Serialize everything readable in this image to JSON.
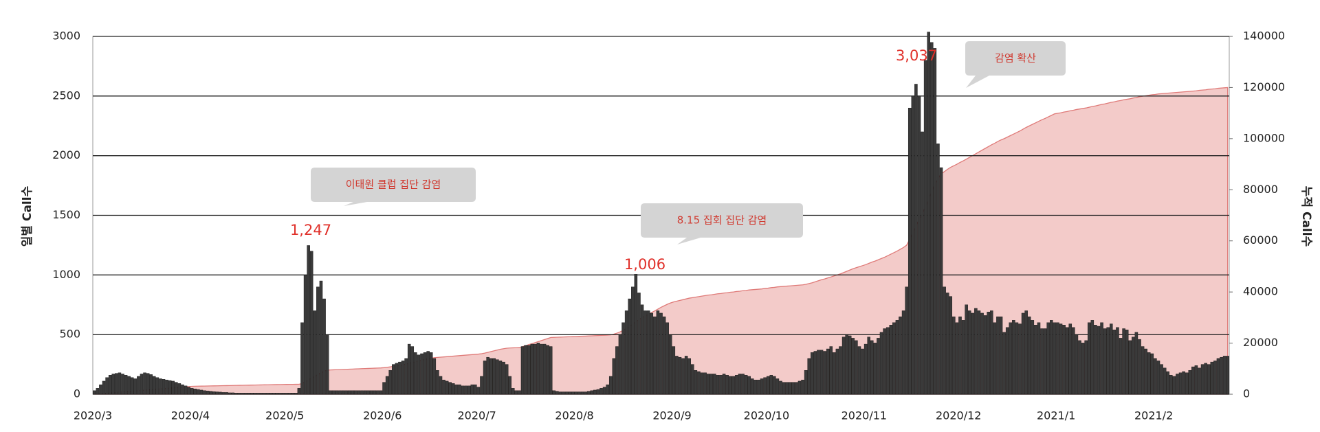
{
  "chart_data": {
    "type": "bar",
    "y_label": "일별 Call수",
    "y2_label": "누적 Call수",
    "categories": [
      "2020/3",
      null,
      null,
      null,
      null,
      null,
      null,
      null,
      null,
      null,
      null,
      null,
      null,
      null,
      null,
      null,
      null,
      null,
      null,
      null,
      null,
      null,
      null,
      null,
      null,
      null,
      null,
      null,
      null,
      null,
      null,
      "2020/4",
      null,
      null,
      null,
      null,
      null,
      null,
      null,
      null,
      null,
      null,
      null,
      null,
      null,
      null,
      null,
      null,
      null,
      null,
      null,
      null,
      null,
      null,
      null,
      null,
      null,
      null,
      null,
      null,
      null,
      "2020/5",
      null,
      null,
      null,
      null,
      null,
      null,
      null,
      null,
      null,
      null,
      null,
      null,
      null,
      null,
      null,
      null,
      null,
      null,
      null,
      null,
      null,
      null,
      null,
      null,
      null,
      null,
      null,
      null,
      null,
      null,
      "2020/6",
      null,
      null,
      null,
      null,
      null,
      null,
      null,
      null,
      null,
      null,
      null,
      null,
      null,
      null,
      null,
      null,
      null,
      null,
      null,
      null,
      null,
      null,
      null,
      null,
      null,
      null,
      null,
      null,
      null,
      "2020/7",
      null,
      null,
      null,
      null,
      null,
      null,
      null,
      null,
      null,
      null,
      null,
      null,
      null,
      null,
      null,
      null,
      null,
      null,
      null,
      null,
      null,
      null,
      null,
      null,
      null,
      null,
      null,
      null,
      null,
      null,
      "2020/8",
      null,
      null,
      null,
      null,
      null,
      null,
      null,
      null,
      null,
      null,
      null,
      null,
      null,
      null,
      null,
      null,
      null,
      null,
      null,
      null,
      null,
      null,
      null,
      null,
      null,
      null,
      null,
      null,
      null,
      null,
      "2020/9",
      null,
      null,
      null,
      null,
      null,
      null,
      null,
      null,
      null,
      null,
      null,
      null,
      null,
      null,
      null,
      null,
      null,
      null,
      null,
      null,
      null,
      null,
      null,
      null,
      null,
      null,
      null,
      null,
      null,
      "2020/10",
      null,
      null,
      null,
      null,
      null,
      null,
      null,
      null,
      null,
      null,
      null,
      null,
      null,
      null,
      null,
      null,
      null,
      null,
      null,
      null,
      null,
      null,
      null,
      null,
      null,
      null,
      null,
      null,
      null,
      null,
      "2020/11",
      null,
      null,
      null,
      null,
      null,
      null,
      null,
      null,
      null,
      null,
      null,
      null,
      null,
      null,
      null,
      null,
      null,
      null,
      null,
      null,
      null,
      null,
      null,
      null,
      null,
      null,
      null,
      null,
      null,
      "2020/12",
      null,
      null,
      null,
      null,
      null,
      null,
      null,
      null,
      null,
      null,
      null,
      null,
      null,
      null,
      null,
      null,
      null,
      null,
      null,
      null,
      null,
      null,
      null,
      null,
      null,
      null,
      null,
      null,
      null,
      null,
      "2021/1",
      null,
      null,
      null,
      null,
      null,
      null,
      null,
      null,
      null,
      null,
      null,
      null,
      null,
      null,
      null,
      null,
      null,
      null,
      null,
      null,
      null,
      null,
      null,
      null,
      null,
      null,
      null,
      null,
      null,
      null,
      "2021/2",
      null,
      null,
      null,
      null,
      null,
      null,
      null,
      null,
      null,
      null,
      null,
      null,
      null,
      null,
      null,
      null,
      null,
      null,
      null,
      null,
      null,
      null,
      null
    ],
    "series": [
      {
        "color": "#3a3a3a",
        "values": [
          30,
          50,
          80,
          110,
          140,
          160,
          170,
          175,
          180,
          170,
          160,
          150,
          140,
          130,
          150,
          170,
          180,
          175,
          165,
          150,
          140,
          130,
          125,
          120,
          115,
          110,
          100,
          90,
          80,
          70,
          60,
          50,
          45,
          40,
          35,
          30,
          28,
          25,
          22,
          20,
          18,
          15,
          15,
          12,
          12,
          10,
          10,
          10,
          10,
          10,
          10,
          10,
          10,
          10,
          10,
          10,
          10,
          10,
          10,
          10,
          10,
          10,
          10,
          10,
          10,
          50,
          600,
          1000,
          1247,
          1200,
          700,
          900,
          950,
          800,
          500,
          30,
          30,
          30,
          30,
          30,
          30,
          30,
          30,
          30,
          30,
          30,
          30,
          30,
          30,
          30,
          30,
          30,
          100,
          150,
          200,
          250,
          260,
          270,
          280,
          300,
          420,
          400,
          350,
          330,
          340,
          350,
          360,
          350,
          300,
          200,
          150,
          120,
          110,
          100,
          90,
          80,
          80,
          70,
          70,
          70,
          80,
          80,
          60,
          150,
          280,
          310,
          300,
          300,
          290,
          280,
          270,
          250,
          150,
          50,
          30,
          30,
          400,
          410,
          410,
          420,
          420,
          430,
          420,
          420,
          410,
          400,
          30,
          25,
          20,
          20,
          20,
          20,
          20,
          20,
          20,
          20,
          20,
          25,
          30,
          35,
          40,
          50,
          60,
          80,
          150,
          300,
          400,
          500,
          600,
          700,
          800,
          900,
          1006,
          850,
          750,
          700,
          700,
          680,
          650,
          700,
          680,
          650,
          600,
          500,
          400,
          320,
          310,
          300,
          320,
          300,
          250,
          200,
          190,
          180,
          180,
          170,
          170,
          170,
          160,
          160,
          170,
          160,
          150,
          150,
          160,
          170,
          170,
          160,
          150,
          130,
          120,
          120,
          130,
          140,
          150,
          160,
          150,
          130,
          110,
          100,
          100,
          100,
          100,
          100,
          110,
          120,
          200,
          300,
          350,
          360,
          370,
          370,
          360,
          380,
          400,
          350,
          380,
          400,
          480,
          500,
          490,
          470,
          450,
          400,
          380,
          420,
          480,
          450,
          430,
          470,
          520,
          550,
          560,
          580,
          600,
          620,
          650,
          700,
          900,
          2400,
          2500,
          2600,
          2500,
          2200,
          2800,
          3037,
          2950,
          2900,
          2100,
          1900,
          900,
          850,
          820,
          650,
          600,
          650,
          620,
          750,
          700,
          680,
          720,
          700,
          680,
          660,
          690,
          700,
          600,
          650,
          650,
          520,
          560,
          600,
          620,
          600,
          590,
          680,
          700,
          650,
          620,
          580,
          600,
          550,
          550,
          600,
          620,
          600,
          600,
          590,
          580,
          560,
          590,
          560,
          500,
          450,
          430,
          450,
          600,
          620,
          580,
          570,
          600,
          550,
          560,
          590,
          540,
          560,
          470,
          550,
          540,
          450,
          480,
          520,
          460,
          400,
          380,
          350,
          340,
          300,
          280,
          250,
          220,
          190,
          160,
          150,
          170,
          180,
          190,
          180,
          200,
          230,
          240,
          220,
          250,
          260,
          250,
          270,
          280,
          300,
          310,
          320,
          320
        ]
      },
      {
        "type": "area",
        "axis": "y2",
        "color": "#f3cbc9",
        "line_color": "#df7a78",
        "values": [
          0,
          100,
          200,
          300,
          400,
          500,
          600,
          700,
          800,
          900,
          1000,
          1100,
          1200,
          1300,
          1400,
          1500,
          1600,
          1700,
          1800,
          1900,
          2000,
          2100,
          2200,
          2300,
          2400,
          2500,
          2600,
          2700,
          2800,
          2900,
          3000,
          3100,
          3125,
          3150,
          3175,
          3200,
          3225,
          3250,
          3275,
          3300,
          3325,
          3350,
          3375,
          3400,
          3425,
          3450,
          3475,
          3500,
          3525,
          3550,
          3575,
          3600,
          3625,
          3650,
          3675,
          3700,
          3725,
          3750,
          3775,
          3800,
          3825,
          3850,
          3860,
          3870,
          3880,
          3900,
          4200,
          4800,
          5600,
          6400,
          7000,
          7700,
          8400,
          9000,
          9400,
          9500,
          9550,
          9600,
          9650,
          9700,
          9750,
          9800,
          9850,
          9900,
          9950,
          10000,
          10050,
          10100,
          10150,
          10200,
          10250,
          10300,
          10400,
          10550,
          10700,
          10900,
          11100,
          11300,
          11500,
          11800,
          12100,
          12400,
          12700,
          13000,
          13300,
          13600,
          13900,
          14100,
          14300,
          14400,
          14500,
          14600,
          14700,
          14800,
          14900,
          15000,
          15100,
          15200,
          15300,
          15400,
          15500,
          15600,
          15700,
          15850,
          16100,
          16400,
          16700,
          17000,
          17300,
          17600,
          17800,
          18000,
          18100,
          18150,
          18200,
          18250,
          18600,
          19000,
          19400,
          19800,
          20200,
          20600,
          21000,
          21400,
          21800,
          22200,
          22250,
          22300,
          22350,
          22400,
          22450,
          22500,
          22550,
          22600,
          22650,
          22700,
          22750,
          22800,
          22850,
          22900,
          22950,
          23000,
          23050,
          23100,
          23200,
          23500,
          23900,
          24400,
          25000,
          25700,
          26500,
          27400,
          28400,
          29200,
          29900,
          30600,
          31300,
          32000,
          32600,
          33300,
          34000,
          34600,
          35200,
          35700,
          36100,
          36400,
          36700,
          37000,
          37300,
          37600,
          37800,
          38000,
          38200,
          38400,
          38600,
          38800,
          38900,
          39100,
          39300,
          39400,
          39600,
          39700,
          39900,
          40000,
          40200,
          40300,
          40500,
          40600,
          40800,
          40900,
          41000,
          41100,
          41200,
          41400,
          41500,
          41700,
          41800,
          42000,
          42100,
          42200,
          42300,
          42400,
          42500,
          42600,
          42700,
          42800,
          43000,
          43300,
          43600,
          44000,
          44400,
          44800,
          45100,
          45500,
          45900,
          46300,
          46700,
          47100,
          47600,
          48100,
          48600,
          49100,
          49500,
          49900,
          50300,
          50700,
          51200,
          51700,
          52100,
          52600,
          53100,
          53600,
          54200,
          54800,
          55400,
          56000,
          56700,
          57400,
          58300,
          60700,
          63200,
          65800,
          68300,
          70500,
          73300,
          76300,
          79300,
          82200,
          84300,
          86200,
          87100,
          88000,
          88800,
          89400,
          90000,
          90700,
          91300,
          92000,
          92700,
          93400,
          94100,
          94800,
          95500,
          96200,
          96900,
          97600,
          98200,
          98900,
          99500,
          100000,
          100600,
          101200,
          101800,
          102400,
          103000,
          103700,
          104400,
          105000,
          105600,
          106200,
          106800,
          107400,
          107900,
          108500,
          109100,
          109700,
          109900,
          110100,
          110400,
          110600,
          110900,
          111100,
          111400,
          111600,
          111800,
          112000,
          112300,
          112600,
          112800,
          113100,
          113400,
          113600,
          113900,
          114200,
          114400,
          114700,
          114900,
          115200,
          115400,
          115600,
          115900,
          116100,
          116400,
          116600,
          116800,
          117000,
          117200,
          117300,
          117500,
          117600,
          117700,
          117800,
          117900,
          118000,
          118100,
          118200,
          118300,
          118400,
          118500,
          118600,
          118700,
          118900,
          119000,
          119100,
          119300,
          119400,
          119500,
          119700,
          119800,
          119900,
          120000
        ]
      }
    ],
    "ylim": [
      0,
      3000
    ],
    "yticks": [
      0,
      500,
      1000,
      1500,
      2000,
      2500,
      3000
    ],
    "y2lim": [
      0,
      140000
    ],
    "y2ticks": [
      0,
      20000,
      40000,
      60000,
      80000,
      100000,
      120000,
      140000
    ],
    "grid": true,
    "annotations": [
      {
        "value_label": "1,247",
        "callout": "이태원 클럽 집단 감염"
      },
      {
        "value_label": "1,006",
        "callout": "8.15 집회 집단 감염"
      },
      {
        "value_label": "3,037",
        "callout": "감염 확산"
      }
    ]
  }
}
